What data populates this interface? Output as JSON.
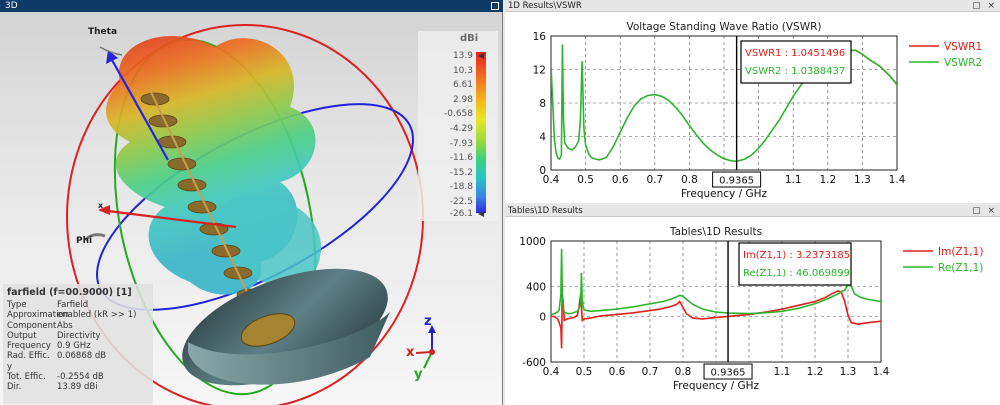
{
  "panel3d": {
    "title": "3D",
    "legend": {
      "unit": "dBi",
      "ticks": [
        "13.9",
        "10.3",
        "6.61",
        "2.98",
        "-0.658",
        "-4.29",
        "-7.93",
        "-11.6",
        "-15.2",
        "-18.8",
        "-22.5",
        "-26.1"
      ]
    },
    "axes": {
      "theta": "Theta",
      "phi": "Phi",
      "x": "x",
      "y": "y",
      "z": "z"
    },
    "info": {
      "title": "farfield (f=00.9000) [1]",
      "rows": [
        {
          "k": "Type",
          "v": "Farfield"
        },
        {
          "k": "Approximation",
          "v": "enabled (kR >> 1)"
        },
        {
          "k": "Component",
          "v": "Abs"
        },
        {
          "k": "Output",
          "v": "Directivity"
        },
        {
          "k": "Frequency",
          "v": "0.9 GHz"
        },
        {
          "k": "Rad. Effic. y",
          "v": "0.06868 dB"
        },
        {
          "k": "Tot. Effic.",
          "v": "-0.2554 dB"
        },
        {
          "k": "Dir.",
          "v": "13.89 dBi"
        }
      ]
    }
  },
  "vswr_panel": {
    "window_title": "1D Results\\VSWR",
    "buttons": "▢ ×",
    "marker_x_label": "0.9365",
    "marker_lines": [
      "VSWR1 : 1.0451496",
      "VSWR2 : 1.0388437"
    ]
  },
  "tables_panel": {
    "window_title": "Tables\\1D Results",
    "buttons": "▢ ×",
    "marker_x_label": "0.9365",
    "marker_lines": [
      "Im(Z1,1) : 3.2373185",
      "Re(Z1,1) : 46.069899"
    ]
  },
  "chart_data": [
    {
      "type": "line",
      "title": "Voltage Standing Wave Ratio (VSWR)",
      "xlabel": "Frequency / GHz",
      "ylabel": "",
      "xlim": [
        0.4,
        1.4
      ],
      "ylim": [
        0,
        16
      ],
      "xticks": [
        0.4,
        0.5,
        0.6,
        0.7,
        0.8,
        0.9,
        1.0,
        1.1,
        1.2,
        1.3,
        1.4
      ],
      "yticks": [
        0,
        4,
        8,
        12,
        16
      ],
      "grid": true,
      "legend_position": "right",
      "marker_x": 0.9365,
      "series": [
        {
          "name": "VSWR1",
          "color": "#e0201b",
          "x": [
            1.22,
            1.25,
            1.28,
            1.3,
            1.32,
            1.35,
            1.38,
            1.4
          ],
          "y": [
            14.0,
            14.2,
            14.3,
            13.8,
            13.2,
            12.4,
            11.2,
            10.2
          ]
        },
        {
          "name": "VSWR2",
          "color": "#2cb52c",
          "x": [
            0.4,
            0.405,
            0.41,
            0.415,
            0.42,
            0.425,
            0.43,
            0.433,
            0.436,
            0.44,
            0.45,
            0.46,
            0.47,
            0.48,
            0.485,
            0.49,
            0.495,
            0.5,
            0.51,
            0.52,
            0.53,
            0.54,
            0.56,
            0.58,
            0.6,
            0.62,
            0.64,
            0.66,
            0.68,
            0.7,
            0.72,
            0.74,
            0.76,
            0.78,
            0.8,
            0.82,
            0.84,
            0.86,
            0.88,
            0.9,
            0.92,
            0.9365,
            0.96,
            0.98,
            1.0,
            1.02,
            1.04,
            1.06,
            1.08,
            1.1,
            1.12,
            1.14,
            1.16,
            1.18,
            1.2,
            1.22,
            1.25,
            1.28,
            1.3,
            1.32,
            1.35,
            1.38,
            1.4
          ],
          "y": [
            12.5,
            8.0,
            3.5,
            2.0,
            1.4,
            1.3,
            1.8,
            15.0,
            6.0,
            3.2,
            2.6,
            2.4,
            2.7,
            3.5,
            6.0,
            13.0,
            5.0,
            3.0,
            1.8,
            1.4,
            1.3,
            1.2,
            1.5,
            2.8,
            4.5,
            6.2,
            7.6,
            8.5,
            8.9,
            9.0,
            8.8,
            8.3,
            7.5,
            6.5,
            5.3,
            4.2,
            3.2,
            2.4,
            1.8,
            1.35,
            1.1,
            1.04,
            1.3,
            1.8,
            2.6,
            3.6,
            4.8,
            6.0,
            7.4,
            8.8,
            10.0,
            11.1,
            12.1,
            12.9,
            13.5,
            13.9,
            14.2,
            14.3,
            13.8,
            13.2,
            12.4,
            11.2,
            10.2
          ]
        }
      ]
    },
    {
      "type": "line",
      "title": "Tables\\1D Results",
      "xlabel": "Frequency / GHz",
      "ylabel": "",
      "xlim": [
        0.4,
        1.4
      ],
      "ylim": [
        -600,
        1000
      ],
      "xticks": [
        0.4,
        0.5,
        0.6,
        0.7,
        0.8,
        0.9,
        1.0,
        1.1,
        1.2,
        1.3,
        1.4
      ],
      "yticks": [
        -600,
        0,
        400,
        1000
      ],
      "grid": true,
      "legend_position": "right",
      "marker_x": 0.9365,
      "series": [
        {
          "name": "Im(Z1,1)",
          "color": "#e0201b",
          "x": [
            0.4,
            0.41,
            0.42,
            0.425,
            0.43,
            0.432,
            0.434,
            0.437,
            0.44,
            0.45,
            0.46,
            0.47,
            0.48,
            0.485,
            0.49,
            0.495,
            0.5,
            0.52,
            0.55,
            0.6,
            0.65,
            0.7,
            0.73,
            0.76,
            0.78,
            0.79,
            0.8,
            0.81,
            0.83,
            0.86,
            0.9,
            0.9365,
            1.0,
            1.05,
            1.1,
            1.15,
            1.2,
            1.23,
            1.25,
            1.27,
            1.28,
            1.29,
            1.3,
            1.31,
            1.33,
            1.36,
            1.4
          ],
          "y": [
            5,
            0,
            -30,
            -80,
            -150,
            -420,
            300,
            200,
            -50,
            -30,
            -20,
            -10,
            20,
            120,
            300,
            -50,
            -30,
            -20,
            10,
            30,
            50,
            80,
            100,
            130,
            160,
            200,
            120,
            40,
            -20,
            -30,
            -10,
            3,
            30,
            60,
            100,
            150,
            200,
            250,
            300,
            340,
            320,
            200,
            20,
            -80,
            -100,
            -80,
            -60
          ]
        },
        {
          "name": "Re(Z1,1)",
          "color": "#2cb52c",
          "x": [
            0.4,
            0.41,
            0.42,
            0.425,
            0.43,
            0.432,
            0.434,
            0.437,
            0.44,
            0.45,
            0.46,
            0.48,
            0.49,
            0.492,
            0.495,
            0.5,
            0.52,
            0.55,
            0.6,
            0.65,
            0.7,
            0.74,
            0.77,
            0.79,
            0.8,
            0.81,
            0.83,
            0.86,
            0.9,
            0.9365,
            1.0,
            1.05,
            1.1,
            1.15,
            1.2,
            1.24,
            1.27,
            1.28,
            1.29,
            1.3,
            1.31,
            1.32,
            1.34,
            1.37,
            1.4
          ],
          "y": [
            30,
            40,
            60,
            90,
            300,
            900,
            350,
            120,
            60,
            40,
            40,
            70,
            150,
            580,
            200,
            90,
            70,
            80,
            100,
            130,
            170,
            200,
            240,
            280,
            270,
            230,
            160,
            100,
            60,
            46,
            40,
            50,
            70,
            110,
            170,
            240,
            300,
            330,
            350,
            420,
            400,
            300,
            250,
            220,
            200
          ]
        }
      ]
    }
  ]
}
